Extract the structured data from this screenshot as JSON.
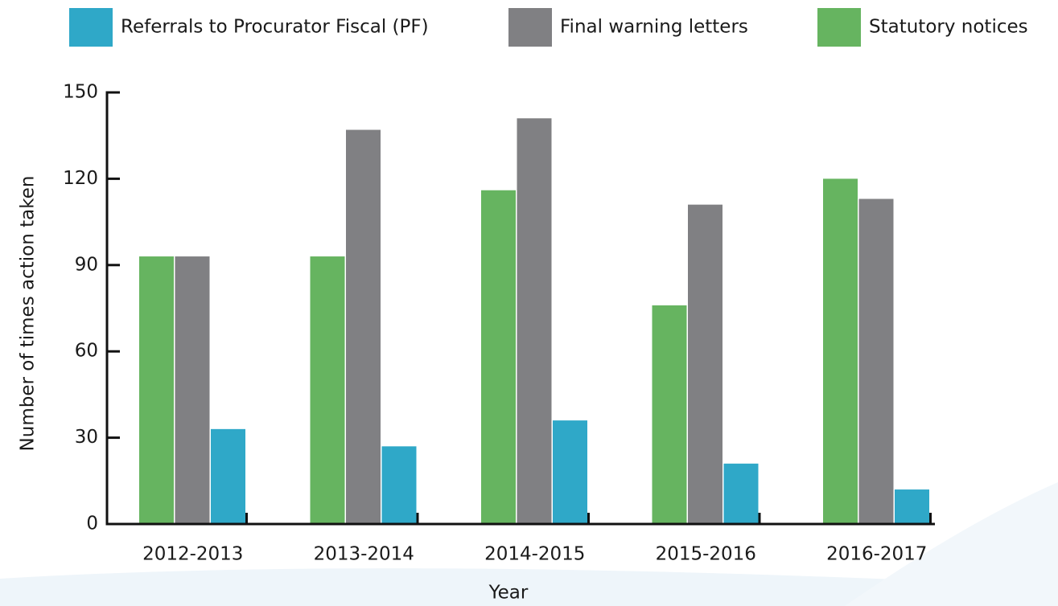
{
  "chart_data": {
    "type": "bar",
    "x_label": "Year",
    "y_label": "Number of times action taken",
    "categories": [
      "2012-2013",
      "2013-2014",
      "2014-2015",
      "2015-2016",
      "2016-2017"
    ],
    "series": [
      {
        "name": "Referrals to Procurator Fiscal (PF)",
        "color": "#2fa8c8",
        "values": [
          33,
          27,
          36,
          21,
          12
        ]
      },
      {
        "name": "Final warning letters",
        "color": "#808083",
        "values": [
          93,
          137,
          141,
          111,
          113
        ]
      },
      {
        "name": "Statutory notices",
        "color": "#66b460",
        "values": [
          93,
          93,
          116,
          76,
          120
        ]
      }
    ],
    "ylim": [
      0,
      150
    ],
    "yticks": [
      0,
      30,
      60,
      90,
      120,
      150
    ],
    "grid": false
  }
}
